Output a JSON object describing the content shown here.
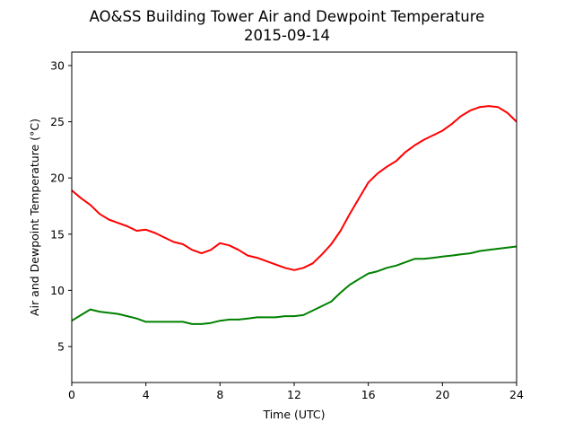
{
  "chart_data": {
    "type": "line",
    "title": "AO&SS Building Tower Air and Dewpoint Temperature",
    "subtitle": "2015-09-14",
    "xlabel": "Time (UTC)",
    "ylabel": "Air and Dewpoint Temperature (°C)",
    "xlim": [
      0,
      24
    ],
    "ylim": [
      1.8,
      31.2
    ],
    "xticks": [
      0,
      4,
      8,
      12,
      16,
      20,
      24
    ],
    "yticks": [
      5,
      10,
      15,
      20,
      25,
      30
    ],
    "grid": false,
    "series": [
      {
        "color": "#ff0000",
        "x": [
          0,
          0.5,
          1,
          1.5,
          2,
          2.5,
          3,
          3.5,
          4,
          4.5,
          5,
          5.5,
          6,
          6.5,
          7,
          7.5,
          8,
          8.5,
          9,
          9.5,
          10,
          10.5,
          11,
          11.5,
          12,
          12.5,
          13,
          13.5,
          14,
          14.5,
          15,
          15.5,
          16,
          16.5,
          17,
          17.5,
          18,
          18.5,
          19,
          19.5,
          20,
          20.5,
          21,
          21.5,
          22,
          22.5,
          23,
          23.5,
          24
        ],
        "y": [
          18.9,
          18.2,
          17.6,
          16.8,
          16.3,
          16.0,
          15.7,
          15.3,
          15.4,
          15.1,
          14.7,
          14.3,
          14.1,
          13.6,
          13.3,
          13.6,
          14.2,
          14.0,
          13.6,
          13.1,
          12.9,
          12.6,
          12.3,
          12.0,
          11.8,
          12.0,
          12.4,
          13.2,
          14.1,
          15.3,
          16.8,
          18.2,
          19.6,
          20.4,
          21.0,
          21.5,
          22.3,
          22.9,
          23.4,
          23.8,
          24.2,
          24.8,
          25.5,
          26.0,
          26.3,
          26.4,
          26.3,
          25.8,
          25.0
        ]
      },
      {
        "color": "#008000",
        "x": [
          0,
          0.5,
          1,
          1.5,
          2,
          2.5,
          3,
          3.5,
          4,
          4.5,
          5,
          5.5,
          6,
          6.5,
          7,
          7.5,
          8,
          8.5,
          9,
          9.5,
          10,
          10.5,
          11,
          11.5,
          12,
          12.5,
          13,
          13.5,
          14,
          14.5,
          15,
          15.5,
          16,
          16.5,
          17,
          17.5,
          18,
          18.5,
          19,
          19.5,
          20,
          20.5,
          21,
          21.5,
          22,
          22.5,
          23,
          23.5,
          24
        ],
        "y": [
          7.3,
          7.8,
          8.3,
          8.1,
          8.0,
          7.9,
          7.7,
          7.5,
          7.2,
          7.2,
          7.2,
          7.2,
          7.2,
          7.0,
          7.0,
          7.1,
          7.3,
          7.4,
          7.4,
          7.5,
          7.6,
          7.6,
          7.6,
          7.7,
          7.7,
          7.8,
          8.2,
          8.6,
          9.0,
          9.8,
          10.5,
          11.0,
          11.5,
          11.7,
          12.0,
          12.2,
          12.5,
          12.8,
          12.8,
          12.9,
          13.0,
          13.1,
          13.2,
          13.3,
          13.5,
          13.6,
          13.7,
          13.8,
          13.9
        ]
      }
    ]
  }
}
